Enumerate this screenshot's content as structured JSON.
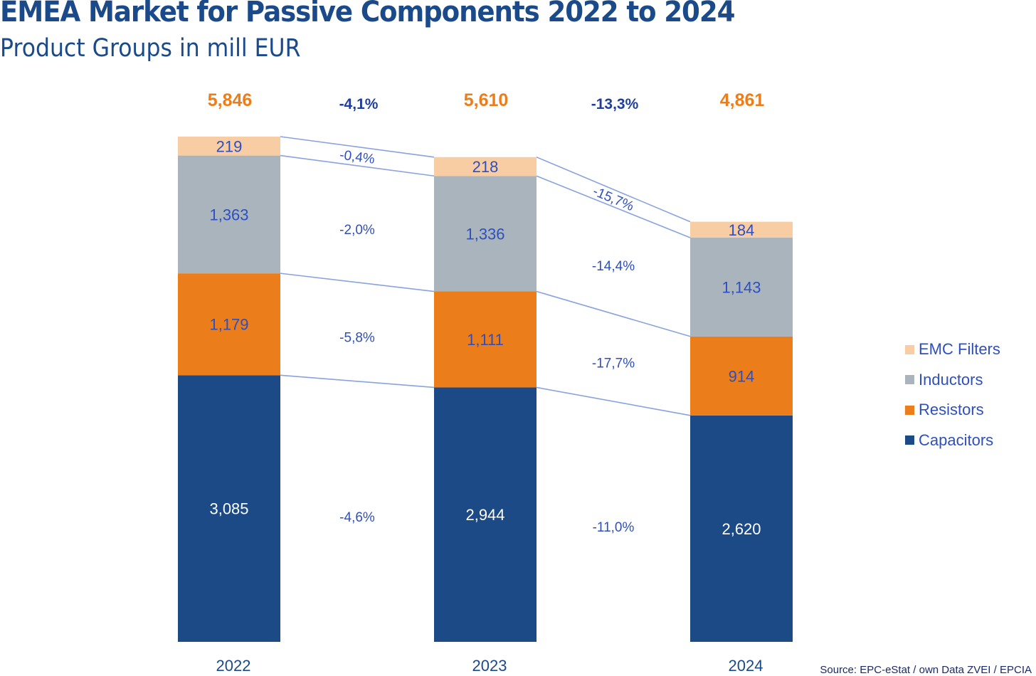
{
  "title": "EMEA Market for Passive Components 2022 to 2024",
  "subtitle": "Product Groups in mill EUR",
  "source": "Source: EPC-eStat / own Data ZVEI / EPCIA",
  "colors": {
    "title": "#1b4a8a",
    "total": "#ec7d1b",
    "growth_total": "#1f3f9a",
    "label": "#2e4fbf",
    "connector": "#8aa2e0"
  },
  "chart_data": {
    "type": "bar",
    "stacked": true,
    "title": "EMEA Market for Passive Components 2022 to 2024",
    "subtitle": "Product Groups in mill EUR",
    "xlabel": "",
    "ylabel": "",
    "categories": [
      "2022",
      "2023",
      "2024"
    ],
    "series": [
      {
        "name": "Capacitors",
        "color": "#1b4a87",
        "label_color": "#ffffff",
        "values": [
          3085,
          2944,
          2620
        ],
        "value_labels": [
          "3,085",
          "2,944",
          "2,620"
        ],
        "growth_labels": [
          "-4,6%",
          "-11,0%"
        ]
      },
      {
        "name": "Resistors",
        "color": "#ec7d1b",
        "label_color": "#2e4fbf",
        "values": [
          1179,
          1111,
          914
        ],
        "value_labels": [
          "1,179",
          "1,111",
          "914"
        ],
        "growth_labels": [
          "-5,8%",
          "-17,7%"
        ]
      },
      {
        "name": "Inductors",
        "color": "#a9b4bc",
        "label_color": "#2e4fbf",
        "values": [
          1363,
          1336,
          1143
        ],
        "value_labels": [
          "1,363",
          "1,336",
          "1,143"
        ],
        "growth_labels": [
          "-2,0%",
          "-14,4%"
        ]
      },
      {
        "name": "EMC Filters",
        "color": "#f8cda3",
        "label_color": "#2e4fbf",
        "values": [
          219,
          218,
          184
        ],
        "value_labels": [
          "219",
          "218",
          "184"
        ],
        "growth_labels": [
          "-0,4%",
          "-15,7%"
        ]
      }
    ],
    "totals": [
      5846,
      5610,
      4861
    ],
    "total_labels": [
      "5,846",
      "5,610",
      "4,861"
    ],
    "total_growth_labels": [
      "-4,1%",
      "-13,3%"
    ],
    "legend": {
      "position": "right",
      "entries": [
        "EMC Filters",
        "Inductors",
        "Resistors",
        "Capacitors"
      ]
    },
    "grid": false,
    "ylim": [
      0,
      5846
    ]
  }
}
